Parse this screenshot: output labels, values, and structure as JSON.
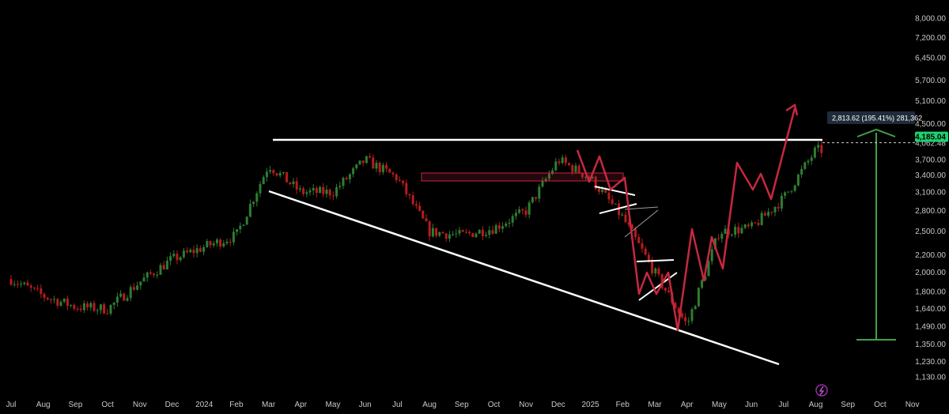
{
  "colors": {
    "background": "#000000",
    "up": "#2e7d32",
    "down": "#b71c1c",
    "trendline": "#ffffff",
    "projection": "#c62840",
    "measure": "#43a047",
    "price_badge": "#1fd16f",
    "measure_label_bg": "#1f2b3a",
    "axis_text": "#c8c8c8"
  },
  "chart_data": {
    "type": "candlestick",
    "y_scale": "log",
    "ylim": [
      1080,
      8400
    ],
    "x_ticks": [
      "Jul",
      "Aug",
      "Sep",
      "Oct",
      "Nov",
      "Dec",
      "2024",
      "Feb",
      "Mar",
      "Apr",
      "May",
      "Jun",
      "Jul",
      "Aug",
      "Sep",
      "Oct",
      "Nov",
      "Dec",
      "2025",
      "Feb",
      "Mar",
      "Apr",
      "May",
      "Jun",
      "Jul",
      "Aug",
      "Sep",
      "Oct",
      "Nov"
    ],
    "y_ticks": [
      "8,000.00",
      "7,200.00",
      "6,450.00",
      "5,700.00",
      "5,100.00",
      "4,500.00",
      "3,700.00",
      "3,400.00",
      "3,100.00",
      "2,800.00",
      "2,500.00",
      "2,200.00",
      "2,000.00",
      "1,800.00",
      "1,640.00",
      "1,490.00",
      "1,350.00",
      "1,230.00",
      "1,130.00"
    ],
    "y_tick_values": [
      8000,
      7200,
      6450,
      5700,
      5100,
      4500,
      3700,
      3400,
      3100,
      2800,
      2500,
      2200,
      2000,
      1800,
      1640,
      1490,
      1350,
      1230,
      1130
    ],
    "last_price": "4,185.04",
    "level_price": "4,062.48",
    "last_price_value": 4185.04,
    "level_price_value": 4062.48,
    "measure_label": "2,813.62 (195.41%) 281,362",
    "price_path": [
      [
        "Jul",
        1930
      ],
      [
        "Aug",
        1760
      ],
      [
        "Sep",
        1660
      ],
      [
        "Oct",
        1640
      ],
      [
        "Nov",
        1900
      ],
      [
        "Dec",
        2150
      ],
      [
        "2024",
        2300
      ],
      [
        "Feb",
        2450
      ],
      [
        "Mar",
        3600
      ],
      [
        "Apr",
        3100
      ],
      [
        "May",
        3100
      ],
      [
        "Jun",
        3700
      ],
      [
        "Jul",
        3350
      ],
      [
        "Aug",
        2500
      ],
      [
        "Sep",
        2450
      ],
      [
        "Oct",
        2550
      ],
      [
        "Nov",
        2800
      ],
      [
        "Dec",
        3700
      ],
      [
        "2025",
        3350
      ],
      [
        "Feb",
        2700
      ],
      [
        "Mar",
        2000
      ],
      [
        "Apr",
        1500
      ],
      [
        "May",
        2500
      ],
      [
        "Jun",
        2550
      ],
      [
        "Jul",
        3000
      ],
      [
        "Aug",
        3900
      ]
    ],
    "trendlines": [
      {
        "name": "resistance",
        "from": [
          "Mar",
          4062.48
        ],
        "to": [
          "Sep",
          4062.48
        ]
      },
      {
        "name": "support",
        "from": [
          "Mar",
          3050
        ],
        "to": [
          "May",
          1280
        ]
      }
    ]
  }
}
